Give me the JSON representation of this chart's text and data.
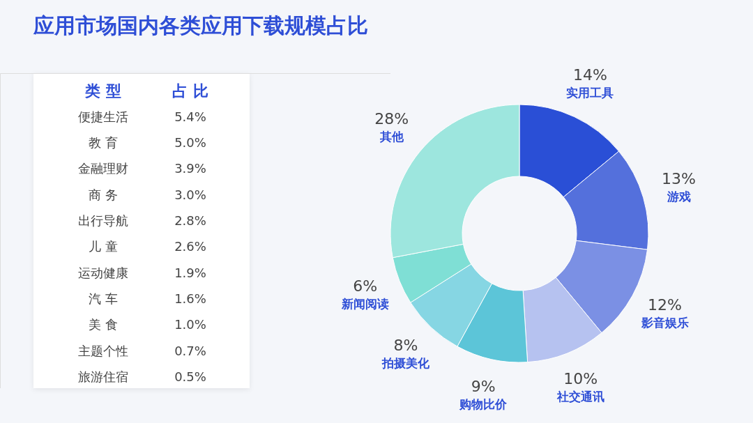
{
  "chart_data": [
    {
      "type": "other",
      "title": "应用市场国内各类应用下载规模占比",
      "xlabel": "类 型",
      "ylabel": "占 比",
      "categories": [
        "便捷生活",
        "教 育",
        "金融理财",
        "商 务",
        "出行导航",
        "儿 童",
        "运动健康",
        "汽 车",
        "美 食",
        "主题个性",
        "旅游住宿"
      ],
      "value_labels": [
        "5.4%",
        "5.0%",
        "3.9%",
        "3.0%",
        "2.8%",
        "2.6%",
        "1.9%",
        "1.6%",
        "1.0%",
        "0.7%",
        "0.5%"
      ]
    },
    {
      "type": "donut",
      "categories": [
        "实用工具",
        "游戏",
        "影音娱乐",
        "社交通讯",
        "购物比价",
        "拍摄美化",
        "新闻阅读",
        "其他"
      ],
      "values": [
        14,
        13,
        12,
        10,
        9,
        8,
        6,
        28
      ],
      "value_labels": [
        "14%",
        "13%",
        "12%",
        "10%",
        "9%",
        "8%",
        "6%",
        "28%"
      ],
      "colors": [
        "#2a4fd6",
        "#5470dc",
        "#7b90e4",
        "#b6c2f0",
        "#5cc5d8",
        "#86d6e3",
        "#7fdfd5",
        "#9de6de"
      ]
    }
  ]
}
